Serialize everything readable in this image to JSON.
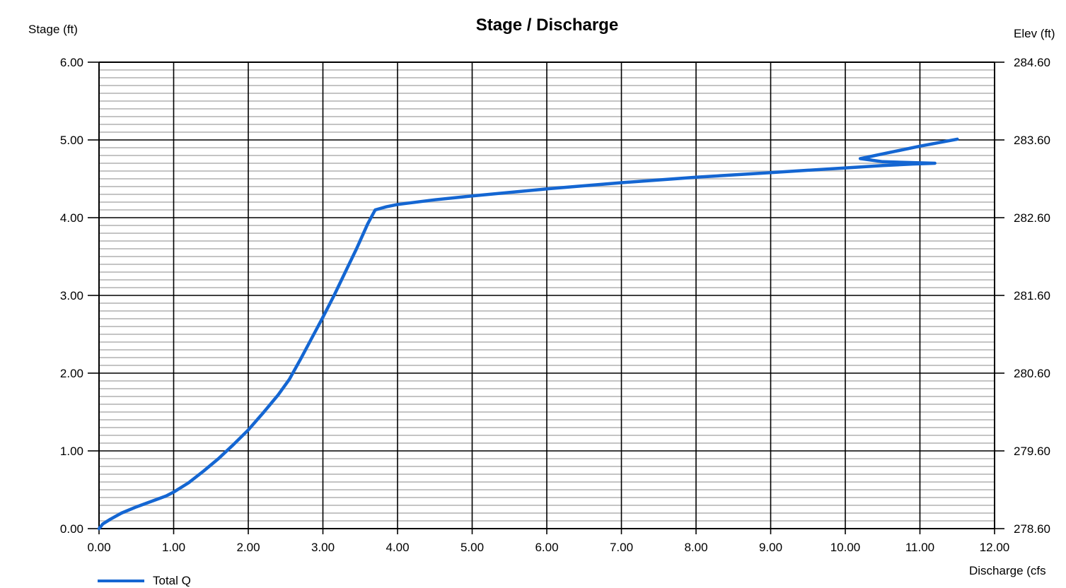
{
  "chart_data": {
    "type": "line",
    "title": "Stage / Discharge",
    "ylabel": "Stage (ft)",
    "y2label": "Elev (ft)",
    "xlabel": "Discharge (cfs",
    "xlim": [
      0,
      12
    ],
    "ylim": [
      0,
      6
    ],
    "y2lim": [
      278.6,
      284.6
    ],
    "x_ticks": [
      "0.00",
      "1.00",
      "2.00",
      "3.00",
      "4.00",
      "5.00",
      "6.00",
      "7.00",
      "8.00",
      "9.00",
      "10.00",
      "11.00",
      "12.00"
    ],
    "y_ticks": [
      "0.00",
      "1.00",
      "2.00",
      "3.00",
      "4.00",
      "5.00",
      "6.00"
    ],
    "y2_ticks": [
      "278.60",
      "279.60",
      "280.60",
      "281.60",
      "282.60",
      "283.60",
      "284.60"
    ],
    "grid": true,
    "legend": "bottom-left",
    "series": [
      {
        "name": "Total Q",
        "color": "#1466d2",
        "x": [
          0.0,
          0.05,
          0.15,
          0.3,
          0.5,
          0.7,
          0.9,
          1.0,
          1.2,
          1.4,
          1.6,
          1.8,
          2.0,
          2.2,
          2.4,
          2.55,
          2.7,
          2.85,
          3.0,
          3.15,
          3.3,
          3.45,
          3.6,
          3.7,
          3.85,
          4.0,
          4.5,
          5.0,
          6.0,
          7.0,
          8.0,
          9.0,
          10.0,
          10.5,
          10.9,
          11.2,
          10.5,
          10.2,
          10.6,
          11.0,
          11.5
        ],
        "y": [
          0.0,
          0.06,
          0.12,
          0.2,
          0.28,
          0.35,
          0.42,
          0.47,
          0.59,
          0.74,
          0.9,
          1.08,
          1.27,
          1.49,
          1.72,
          1.92,
          2.18,
          2.45,
          2.72,
          3.0,
          3.3,
          3.6,
          3.92,
          4.1,
          4.14,
          4.17,
          4.23,
          4.28,
          4.37,
          4.45,
          4.52,
          4.58,
          4.64,
          4.67,
          4.69,
          4.7,
          4.72,
          4.76,
          4.84,
          4.92,
          5.01
        ]
      }
    ]
  }
}
